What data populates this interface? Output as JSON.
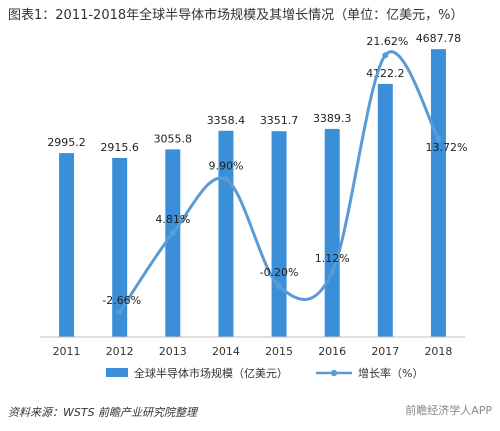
{
  "title": "图表1：2011-2018年全球半导体市场规模及其增长情况（单位：亿美元，%）",
  "source": "资料来源：WSTS 前瞻产业研究院整理",
  "watermark": "前瞻经济学人APP",
  "colors": {
    "bar": "#3b8fd9",
    "line": "#5b9bd5",
    "axis": "#bfbfbf"
  },
  "chart_data": {
    "type": "bar",
    "categories": [
      "2011",
      "2012",
      "2013",
      "2014",
      "2015",
      "2016",
      "2017",
      "2018"
    ],
    "series": [
      {
        "name": "全球半导体市场规模（亿美元）",
        "type": "bar",
        "values": [
          2995.2,
          2915.6,
          3055.8,
          3358.4,
          3351.7,
          3389.3,
          4122.2,
          4687.78
        ],
        "labels": [
          "2995.2",
          "2915.6",
          "3055.8",
          "3358.4",
          "3351.7",
          "3389.3",
          "4122.2",
          "4687.78"
        ]
      },
      {
        "name": "增长率（%）",
        "type": "line",
        "values": [
          null,
          -2.66,
          4.81,
          9.9,
          -0.2,
          1.12,
          21.62,
          13.72
        ],
        "labels": [
          "",
          "-2.66%",
          "4.81%",
          "9.90%",
          "-0.20%",
          "1.12%",
          "21.62%",
          "13.72%"
        ]
      }
    ],
    "bar_range": [
      0,
      5000
    ],
    "line_range": [
      -5,
      24
    ],
    "grid": false,
    "legend_position": "bottom"
  }
}
